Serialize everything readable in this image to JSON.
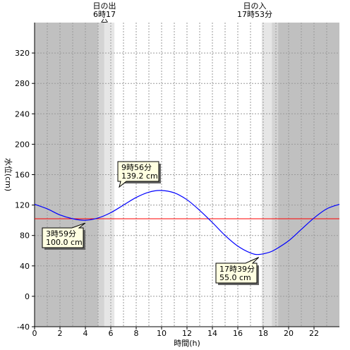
{
  "sunrise": {
    "label": "日の出",
    "time_label": "6時17分",
    "time": 6.2833
  },
  "sunset": {
    "label": "日の入",
    "time_label": "17時53分",
    "time": 17.8833
  },
  "chart_data": {
    "type": "line",
    "xlabel": "時間(h)",
    "ylabel": "水位(cm)",
    "xlim": [
      0,
      24
    ],
    "ylim": [
      -40,
      360
    ],
    "x_ticks": [
      0,
      2,
      4,
      6,
      8,
      10,
      12,
      14,
      16,
      18,
      20,
      22
    ],
    "y_ticks": [
      -40,
      0,
      40,
      80,
      120,
      160,
      200,
      240,
      280,
      320
    ],
    "x_minor_grid_step": 1,
    "grid": true,
    "reference_line": {
      "value": 102,
      "color": "#ff0000"
    },
    "series": [
      {
        "color": "#0000ff",
        "x": [
          0,
          1,
          2,
          3,
          3.983,
          5,
          6,
          7,
          8,
          9,
          9.933,
          11,
          12,
          13,
          14,
          15,
          16,
          17,
          17.65,
          18.5,
          19,
          20,
          21,
          22,
          23,
          24
        ],
        "y": [
          121,
          115,
          107,
          102,
          100,
          103,
          110,
          120,
          130,
          137,
          139.2,
          136,
          127,
          113,
          97,
          80,
          66,
          57,
          55,
          58,
          62,
          73,
          88,
          103,
          115,
          121
        ]
      }
    ],
    "annotations": [
      {
        "name": "low-tide-1",
        "x": 3.983,
        "y": 100.0,
        "time_label": "3時59分",
        "level_label": "100.0 cm"
      },
      {
        "name": "high-tide",
        "x": 9.933,
        "y": 139.2,
        "time_label": "9時56分",
        "level_label": "139.2 cm"
      },
      {
        "name": "low-tide-2",
        "x": 17.65,
        "y": 55.0,
        "time_label": "17時39分",
        "level_label": "55.0 cm"
      }
    ],
    "colors": {
      "night": "#c0c0c0",
      "twilight_outer": "#d4d4d4",
      "twilight_inner": "#e6e6e6",
      "day": "#ffffff",
      "callout_fill": "#ffffe1"
    }
  }
}
